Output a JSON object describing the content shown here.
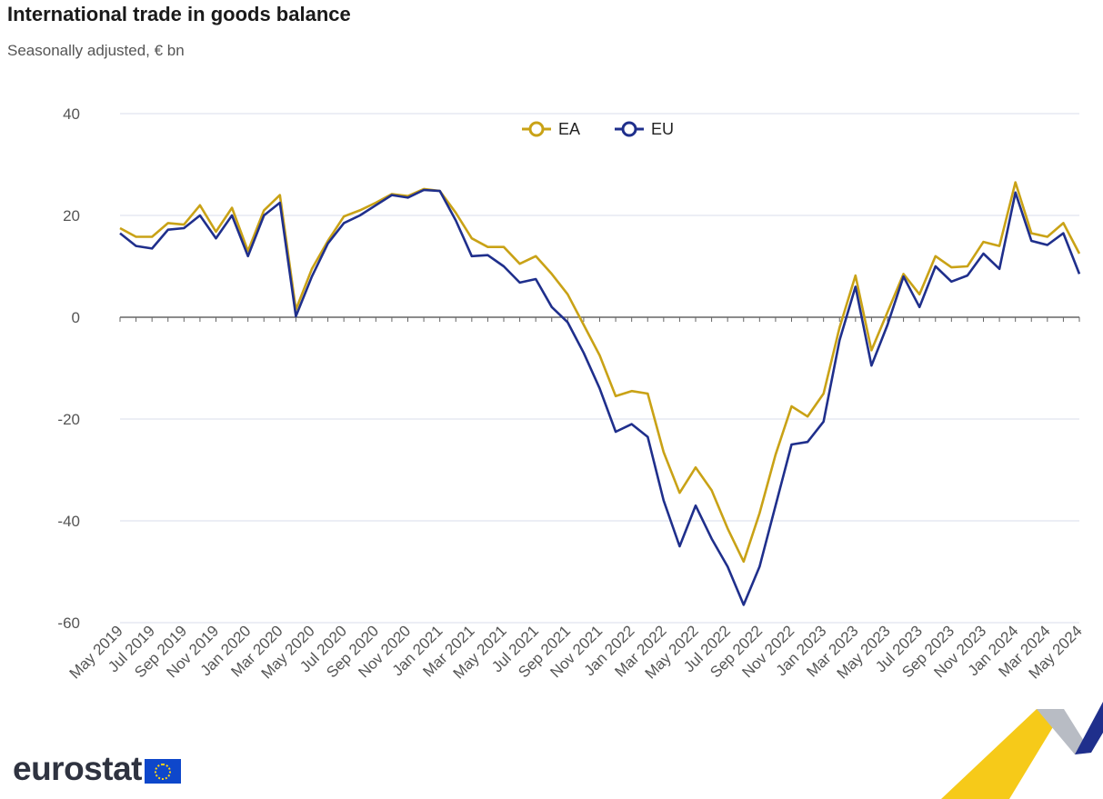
{
  "header": {
    "title": "International trade in goods balance",
    "subtitle": "Seasonally adjusted, € bn"
  },
  "logo": {
    "text": "eurostat",
    "flag_icon": "eu-flag-icon"
  },
  "colors": {
    "EA": "#c9a216",
    "EU": "#1f2f8c",
    "grid": "#e6e9f2",
    "axis": "#555555"
  },
  "chart_data": {
    "type": "line",
    "title": "International trade in goods balance",
    "subtitle": "Seasonally adjusted, € bn",
    "xlabel": "",
    "ylabel": "",
    "ylim": [
      -60,
      40
    ],
    "yticks": [
      40,
      20,
      0,
      -20,
      -40,
      -60
    ],
    "grid": true,
    "legend": "top-center",
    "x": [
      "May 2019",
      "Jun 2019",
      "Jul 2019",
      "Aug 2019",
      "Sep 2019",
      "Oct 2019",
      "Nov 2019",
      "Dec 2019",
      "Jan 2020",
      "Feb 2020",
      "Mar 2020",
      "Apr 2020",
      "May 2020",
      "Jun 2020",
      "Jul 2020",
      "Aug 2020",
      "Sep 2020",
      "Oct 2020",
      "Nov 2020",
      "Dec 2020",
      "Jan 2021",
      "Feb 2021",
      "Mar 2021",
      "Apr 2021",
      "May 2021",
      "Jun 2021",
      "Jul 2021",
      "Aug 2021",
      "Sep 2021",
      "Oct 2021",
      "Nov 2021",
      "Dec 2021",
      "Jan 2022",
      "Feb 2022",
      "Mar 2022",
      "Apr 2022",
      "May 2022",
      "Jun 2022",
      "Jul 2022",
      "Aug 2022",
      "Sep 2022",
      "Oct 2022",
      "Nov 2022",
      "Dec 2022",
      "Jan 2023",
      "Feb 2023",
      "Mar 2023",
      "Apr 2023",
      "May 2023",
      "Jun 2023",
      "Jul 2023",
      "Aug 2023",
      "Sep 2023",
      "Oct 2023",
      "Nov 2023",
      "Dec 2023",
      "Jan 2024",
      "Feb 2024",
      "Mar 2024",
      "Apr 2024",
      "May 2024"
    ],
    "tick_labels": [
      "May 2019",
      "Jul 2019",
      "Sep 2019",
      "Nov 2019",
      "Jan 2020",
      "Mar 2020",
      "May 2020",
      "Jul 2020",
      "Sep 2020",
      "Nov 2020",
      "Jan 2021",
      "Mar 2021",
      "May 2021",
      "Jul 2021",
      "Sep 2021",
      "Nov 2021",
      "Jan 2022",
      "Mar 2022",
      "May 2022",
      "Jul 2022",
      "Sep 2022",
      "Nov 2022",
      "Jan 2023",
      "Mar 2023",
      "May 2023",
      "Jul 2023",
      "Sep 2023",
      "Nov 2023",
      "Jan 2024",
      "Mar 2024",
      "May 2024"
    ],
    "series": [
      {
        "name": "EA",
        "color": "#c9a216",
        "values": [
          17.5,
          15.8,
          15.8,
          18.5,
          18.2,
          22.0,
          16.8,
          21.5,
          13.0,
          21.0,
          24.0,
          1.5,
          9.5,
          15.0,
          19.8,
          21.0,
          22.5,
          24.2,
          23.8,
          25.2,
          24.8,
          20.5,
          15.5,
          13.8,
          13.8,
          10.5,
          12.0,
          8.5,
          4.5,
          -1.5,
          -7.5,
          -15.5,
          -14.5,
          -15.0,
          -26.5,
          -34.5,
          -29.5,
          -34.0,
          -41.5,
          -48.0,
          -38.5,
          -27.0,
          -17.5,
          -19.5,
          -15.0,
          -2.0,
          8.2,
          -6.5,
          1.0,
          8.5,
          4.5,
          12.0,
          9.8,
          10.0,
          14.8,
          14.0,
          26.5,
          16.5,
          15.8,
          18.5,
          12.5
        ]
      },
      {
        "name": "EU",
        "color": "#1f2f8c",
        "values": [
          16.5,
          14.0,
          13.5,
          17.2,
          17.5,
          20.0,
          15.5,
          20.0,
          12.0,
          20.0,
          22.5,
          0.2,
          8.0,
          14.5,
          18.5,
          20.0,
          22.0,
          24.0,
          23.5,
          25.0,
          24.8,
          19.0,
          12.0,
          12.2,
          10.0,
          6.8,
          7.5,
          2.0,
          -1.0,
          -7.0,
          -14.0,
          -22.5,
          -21.0,
          -23.5,
          -36.0,
          -45.0,
          -37.0,
          -43.5,
          -49.0,
          -56.5,
          -49.0,
          -37.0,
          -25.0,
          -24.5,
          -20.5,
          -4.5,
          6.0,
          -9.5,
          -1.5,
          8.0,
          2.0,
          10.0,
          7.0,
          8.2,
          12.5,
          9.5,
          24.5,
          15.0,
          14.2,
          16.5,
          8.5
        ]
      }
    ]
  }
}
